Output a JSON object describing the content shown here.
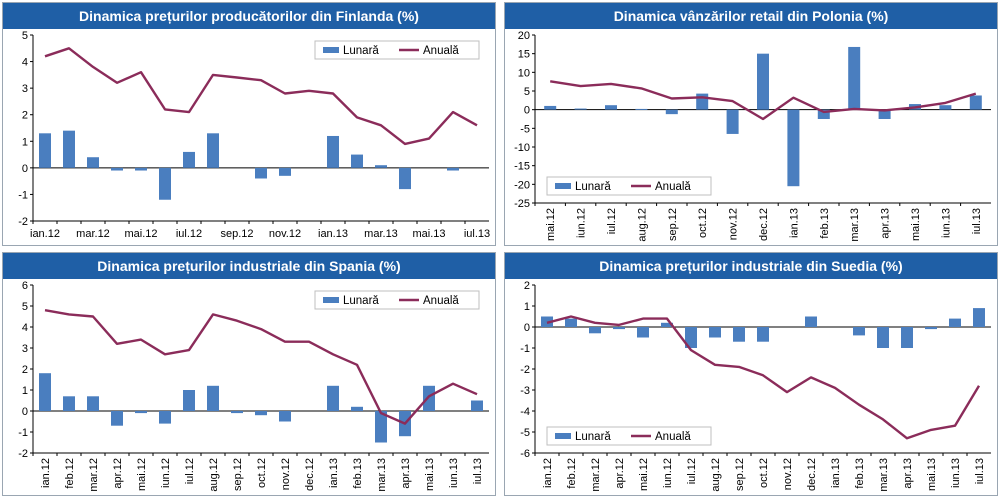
{
  "chart_data": [
    {
      "type": "bar",
      "title": "Dinamica prețurilor producătorilor din Finlanda (%)",
      "ylim": [
        -2,
        5
      ],
      "yticks": [
        5,
        4,
        3,
        2,
        1,
        0,
        -1,
        -2
      ],
      "categories": [
        "ian.12",
        "feb.12",
        "mar.12",
        "apr.12",
        "mai.12",
        "iun.12",
        "iul.12",
        "aug.12",
        "sep.12",
        "oct.12",
        "nov.12",
        "dec.12",
        "ian.13",
        "feb.13",
        "mar.13",
        "apr.13",
        "mai.13",
        "iun.13",
        "iul.13"
      ],
      "xtick_labels": [
        "ian.12",
        "mar.12",
        "mai.12",
        "iul.12",
        "sep.12",
        "nov.12",
        "ian.13",
        "mar.13",
        "mai.13",
        "iul.13"
      ],
      "xtick_step": 2,
      "rotated": false,
      "legend_position": "top-right",
      "series": [
        {
          "name": "Lunară",
          "type": "bar",
          "color": "#4a7ebf",
          "values": [
            1.3,
            1.4,
            0.4,
            -0.1,
            -0.1,
            -1.2,
            0.6,
            1.3,
            0,
            -0.4,
            -0.3,
            0,
            1.2,
            0.5,
            0.1,
            -0.8,
            0,
            -0.1,
            0
          ]
        },
        {
          "name": "Anuală",
          "type": "line",
          "color": "#8b2c5a",
          "values": [
            4.2,
            4.5,
            3.8,
            3.2,
            3.6,
            2.2,
            2.1,
            3.5,
            3.4,
            3.3,
            2.8,
            2.9,
            2.8,
            1.9,
            1.6,
            0.9,
            1.1,
            2.1,
            1.6
          ]
        }
      ]
    },
    {
      "type": "bar",
      "title": "Dinamica vânzărilor retail din Polonia (%)",
      "ylim": [
        -25,
        20
      ],
      "yticks": [
        20,
        15,
        10,
        5,
        0,
        -5,
        -10,
        -15,
        -20,
        -25
      ],
      "categories": [
        "mai.12",
        "iun.12",
        "iul.12",
        "aug.12",
        "sep.12",
        "oct.12",
        "nov.12",
        "dec.12",
        "ian.13",
        "feb.13",
        "mar.13",
        "apr.13",
        "mai.13",
        "iun.13",
        "iul.13"
      ],
      "xtick_labels": [
        "mai.12",
        "iun.12",
        "iul.12",
        "aug.12",
        "sep.12",
        "oct.12",
        "nov.12",
        "dec.12",
        "ian.13",
        "feb.13",
        "mar.13",
        "apr.13",
        "mai.13",
        "iun.13",
        "iul.13"
      ],
      "xtick_step": 1,
      "rotated": true,
      "legend_position": "bottom-left",
      "series": [
        {
          "name": "Lunară",
          "type": "bar",
          "color": "#4a7ebf",
          "values": [
            1,
            0.3,
            1.2,
            0.2,
            -1.2,
            4.3,
            -6.5,
            15,
            -20.5,
            -2.5,
            16.8,
            -2.5,
            1.5,
            1.2,
            3.8
          ]
        },
        {
          "name": "Anuală",
          "type": "line",
          "color": "#8b2c5a",
          "values": [
            7.6,
            6.3,
            6.9,
            5.7,
            3,
            3.3,
            2.3,
            -2.5,
            3.2,
            -0.6,
            0.2,
            -0.2,
            0.6,
            1.8,
            4.3
          ]
        }
      ]
    },
    {
      "type": "bar",
      "title": "Dinamica prețurilor industriale din Spania (%)",
      "ylim": [
        -2,
        6
      ],
      "yticks": [
        6,
        5,
        4,
        3,
        2,
        1,
        0,
        -1,
        -2
      ],
      "categories": [
        "ian.12",
        "feb.12",
        "mar.12",
        "apr.12",
        "mai.12",
        "iun.12",
        "iul.12",
        "aug.12",
        "sep.12",
        "oct.12",
        "nov.12",
        "dec.12",
        "ian.13",
        "feb.13",
        "mar.13",
        "apr.13",
        "mai.13",
        "iun.13",
        "iul.13"
      ],
      "xtick_labels": [
        "ian.12",
        "feb.12",
        "mar.12",
        "apr.12",
        "mai.12",
        "iun.12",
        "iul.12",
        "aug.12",
        "sep.12",
        "oct.12",
        "nov.12",
        "dec.12",
        "ian.13",
        "feb.13",
        "mar.13",
        "apr.13",
        "mai.13",
        "iun.13",
        "iul.13"
      ],
      "xtick_step": 1,
      "rotated": true,
      "legend_position": "top-right",
      "series": [
        {
          "name": "Lunară",
          "type": "bar",
          "color": "#4a7ebf",
          "values": [
            1.8,
            0.7,
            0.7,
            -0.7,
            -0.1,
            -0.6,
            1,
            1.2,
            -0.1,
            -0.2,
            -0.5,
            0,
            1.2,
            0.2,
            -1.5,
            -1.2,
            1.2,
            0,
            0.5
          ]
        },
        {
          "name": "Anuală",
          "type": "line",
          "color": "#8b2c5a",
          "values": [
            4.8,
            4.6,
            4.5,
            3.2,
            3.4,
            2.7,
            2.9,
            4.6,
            4.3,
            3.9,
            3.3,
            3.3,
            2.7,
            2.2,
            -0.1,
            -0.6,
            0.7,
            1.3,
            0.8
          ]
        }
      ]
    },
    {
      "type": "bar",
      "title": "Dinamica prețurilor industriale din Suedia (%)",
      "ylim": [
        -6,
        2
      ],
      "yticks": [
        2,
        1,
        0,
        -1,
        -2,
        -3,
        -4,
        -5,
        -6
      ],
      "categories": [
        "ian.12",
        "feb.12",
        "mar.12",
        "apr.12",
        "mai.12",
        "iun.12",
        "iul.12",
        "aug.12",
        "sep.12",
        "oct.12",
        "nov.12",
        "dec.12",
        "ian.13",
        "feb.13",
        "mar.13",
        "apr.13",
        "mai.13",
        "iun.13",
        "iul.13"
      ],
      "xtick_labels": [
        "ian.12",
        "feb.12",
        "mar.12",
        "apr.12",
        "mai.12",
        "iun.12",
        "iul.12",
        "aug.12",
        "sep.12",
        "oct.12",
        "nov.12",
        "dec.12",
        "ian.13",
        "feb.13",
        "mar.13",
        "apr.13",
        "mai.13",
        "iun.13",
        "iul.13"
      ],
      "xtick_step": 1,
      "rotated": true,
      "legend_position": "bottom-left",
      "series": [
        {
          "name": "Lunară",
          "type": "bar",
          "color": "#4a7ebf",
          "values": [
            0.5,
            0.4,
            -0.3,
            -0.1,
            -0.5,
            0.2,
            -1,
            -0.5,
            -0.7,
            -0.7,
            0,
            0.5,
            0,
            -0.4,
            -1,
            -1,
            -0.1,
            0.4,
            0.9
          ]
        },
        {
          "name": "Anuală",
          "type": "line",
          "color": "#8b2c5a",
          "values": [
            0.2,
            0.5,
            0.2,
            0.1,
            0.4,
            0.4,
            -1.1,
            -1.8,
            -1.9,
            -2.3,
            -3.1,
            -2.4,
            -2.9,
            -3.7,
            -4.4,
            -5.3,
            -4.9,
            -4.7,
            -2.8
          ]
        }
      ]
    }
  ]
}
